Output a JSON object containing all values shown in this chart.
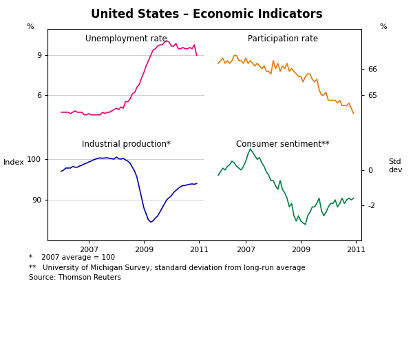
{
  "title": "United States – Economic Indicators",
  "footnote1": "*    2007 average = 100",
  "footnote2": "**   University of Michigan Survey; standard deviation from long-run average",
  "footnote3": "Source: Thomson Reuters",
  "unemp_label": "Unemployment rate",
  "part_label": "Participation rate",
  "ind_label": "Industrial production*",
  "cons_label": "Consumer sentiment**",
  "left_ylabel_top": "%",
  "left_ylabel_bottom": "Index",
  "right_ylabel_top": "%",
  "right_ylabel_bottom_line1": "Std",
  "right_ylabel_bottom_line2": "dev",
  "unemp_color": "#E8006E",
  "part_color": "#E87800",
  "ind_color": "#0000AA",
  "cons_color": "#008040",
  "unemp_ylim": [
    3,
    11
  ],
  "unemp_yticks": [
    6,
    9
  ],
  "part_ylim": [
    63.5,
    67.5
  ],
  "part_yticks": [
    65,
    66
  ],
  "ind_ylim": [
    80,
    106
  ],
  "ind_yticks": [
    90,
    100
  ],
  "cons_ylim": [
    -4,
    2
  ],
  "cons_yticks": [
    -2,
    0
  ],
  "xlim": [
    2005.5,
    2011.2
  ],
  "xticks": [
    2007,
    2009,
    2011
  ],
  "unemp_x": [
    2006.0,
    2006.083,
    2006.167,
    2006.25,
    2006.333,
    2006.417,
    2006.5,
    2006.583,
    2006.667,
    2006.75,
    2006.833,
    2006.917,
    2007.0,
    2007.083,
    2007.167,
    2007.25,
    2007.333,
    2007.417,
    2007.5,
    2007.583,
    2007.667,
    2007.75,
    2007.833,
    2007.917,
    2008.0,
    2008.083,
    2008.167,
    2008.25,
    2008.333,
    2008.417,
    2008.5,
    2008.583,
    2008.667,
    2008.75,
    2008.833,
    2008.917,
    2009.0,
    2009.083,
    2009.167,
    2009.25,
    2009.333,
    2009.417,
    2009.5,
    2009.583,
    2009.667,
    2009.75,
    2009.833,
    2009.917,
    2010.0,
    2010.083,
    2010.167,
    2010.25,
    2010.333,
    2010.417,
    2010.5,
    2010.583,
    2010.667,
    2010.75,
    2010.833,
    2010.917
  ],
  "unemp_y": [
    4.7,
    4.7,
    4.7,
    4.7,
    4.6,
    4.7,
    4.8,
    4.7,
    4.7,
    4.7,
    4.5,
    4.5,
    4.6,
    4.5,
    4.5,
    4.5,
    4.5,
    4.5,
    4.7,
    4.6,
    4.7,
    4.7,
    4.8,
    4.9,
    5.0,
    4.9,
    5.1,
    5.0,
    5.5,
    5.5,
    5.7,
    6.1,
    6.2,
    6.6,
    6.8,
    7.3,
    7.7,
    8.2,
    8.6,
    9.0,
    9.4,
    9.5,
    9.7,
    9.8,
    9.8,
    10.0,
    10.1,
    10.0,
    9.7,
    9.7,
    9.9,
    9.5,
    9.5,
    9.6,
    9.5,
    9.5,
    9.6,
    9.5,
    9.8,
    9.0
  ],
  "part_x": [
    2006.0,
    2006.083,
    2006.167,
    2006.25,
    2006.333,
    2006.417,
    2006.5,
    2006.583,
    2006.667,
    2006.75,
    2006.833,
    2006.917,
    2007.0,
    2007.083,
    2007.167,
    2007.25,
    2007.333,
    2007.417,
    2007.5,
    2007.583,
    2007.667,
    2007.75,
    2007.833,
    2007.917,
    2008.0,
    2008.083,
    2008.167,
    2008.25,
    2008.333,
    2008.417,
    2008.5,
    2008.583,
    2008.667,
    2008.75,
    2008.833,
    2008.917,
    2009.0,
    2009.083,
    2009.167,
    2009.25,
    2009.333,
    2009.417,
    2009.5,
    2009.583,
    2009.667,
    2009.75,
    2009.833,
    2009.917,
    2010.0,
    2010.083,
    2010.167,
    2010.25,
    2010.333,
    2010.417,
    2010.5,
    2010.583,
    2010.667,
    2010.75,
    2010.833,
    2010.917
  ],
  "part_y": [
    66.2,
    66.3,
    66.4,
    66.2,
    66.3,
    66.2,
    66.3,
    66.5,
    66.5,
    66.3,
    66.3,
    66.2,
    66.4,
    66.2,
    66.3,
    66.2,
    66.1,
    66.2,
    66.1,
    66.0,
    66.1,
    65.9,
    65.9,
    65.8,
    66.3,
    66.0,
    66.2,
    65.9,
    66.1,
    66.0,
    66.2,
    65.9,
    66.0,
    65.9,
    65.8,
    65.7,
    65.7,
    65.5,
    65.7,
    65.8,
    65.8,
    65.6,
    65.5,
    65.6,
    65.2,
    65.0,
    65.0,
    65.1,
    64.8,
    64.8,
    64.8,
    64.8,
    64.7,
    64.8,
    64.6,
    64.6,
    64.6,
    64.7,
    64.5,
    64.3
  ],
  "ind_x": [
    2006.0,
    2006.083,
    2006.167,
    2006.25,
    2006.333,
    2006.417,
    2006.5,
    2006.583,
    2006.667,
    2006.75,
    2006.833,
    2006.917,
    2007.0,
    2007.083,
    2007.167,
    2007.25,
    2007.333,
    2007.417,
    2007.5,
    2007.583,
    2007.667,
    2007.75,
    2007.833,
    2007.917,
    2008.0,
    2008.083,
    2008.167,
    2008.25,
    2008.333,
    2008.417,
    2008.5,
    2008.583,
    2008.667,
    2008.75,
    2008.833,
    2008.917,
    2009.0,
    2009.083,
    2009.167,
    2009.25,
    2009.333,
    2009.417,
    2009.5,
    2009.583,
    2009.667,
    2009.75,
    2009.833,
    2009.917,
    2010.0,
    2010.083,
    2010.167,
    2010.25,
    2010.333,
    2010.417,
    2010.5,
    2010.583,
    2010.667,
    2010.75,
    2010.833,
    2010.917
  ],
  "ind_y": [
    97.0,
    97.3,
    97.8,
    97.8,
    97.8,
    98.2,
    98.0,
    98.0,
    98.3,
    98.5,
    98.8,
    99.0,
    99.3,
    99.5,
    99.8,
    100.0,
    100.2,
    100.3,
    100.2,
    100.3,
    100.3,
    100.2,
    100.1,
    100.0,
    100.5,
    100.1,
    100.0,
    100.2,
    99.8,
    99.5,
    99.0,
    98.0,
    97.0,
    95.5,
    93.0,
    90.5,
    88.0,
    86.5,
    85.0,
    84.5,
    84.8,
    85.5,
    86.0,
    87.0,
    88.0,
    89.0,
    90.0,
    90.5,
    91.0,
    91.8,
    92.3,
    92.8,
    93.2,
    93.5,
    93.5,
    93.7,
    93.8,
    93.9,
    93.8,
    94.0
  ],
  "cons_x": [
    2006.0,
    2006.083,
    2006.167,
    2006.25,
    2006.333,
    2006.417,
    2006.5,
    2006.583,
    2006.667,
    2006.75,
    2006.833,
    2006.917,
    2007.0,
    2007.083,
    2007.167,
    2007.25,
    2007.333,
    2007.417,
    2007.5,
    2007.583,
    2007.667,
    2007.75,
    2007.833,
    2007.917,
    2008.0,
    2008.083,
    2008.167,
    2008.25,
    2008.333,
    2008.417,
    2008.5,
    2008.583,
    2008.667,
    2008.75,
    2008.833,
    2008.917,
    2009.0,
    2009.083,
    2009.167,
    2009.25,
    2009.333,
    2009.417,
    2009.5,
    2009.583,
    2009.667,
    2009.75,
    2009.833,
    2009.917,
    2010.0,
    2010.083,
    2010.167,
    2010.25,
    2010.333,
    2010.417,
    2010.5,
    2010.583,
    2010.667,
    2010.75,
    2010.833,
    2010.917
  ],
  "cons_y": [
    -0.3,
    -0.1,
    0.1,
    0.0,
    0.2,
    0.3,
    0.5,
    0.4,
    0.2,
    0.1,
    0.0,
    0.2,
    0.5,
    0.9,
    1.2,
    1.0,
    0.8,
    0.6,
    0.7,
    0.4,
    0.2,
    -0.1,
    -0.3,
    -0.6,
    -0.6,
    -0.9,
    -1.1,
    -0.6,
    -1.1,
    -1.3,
    -1.6,
    -2.1,
    -1.9,
    -2.6,
    -2.9,
    -2.6,
    -2.9,
    -3.0,
    -3.1,
    -2.6,
    -2.4,
    -2.1,
    -2.1,
    -1.9,
    -1.6,
    -2.3,
    -2.6,
    -2.4,
    -2.1,
    -1.9,
    -1.9,
    -1.7,
    -2.1,
    -1.9,
    -1.6,
    -1.9,
    -1.7,
    -1.6,
    -1.7,
    -1.6
  ]
}
